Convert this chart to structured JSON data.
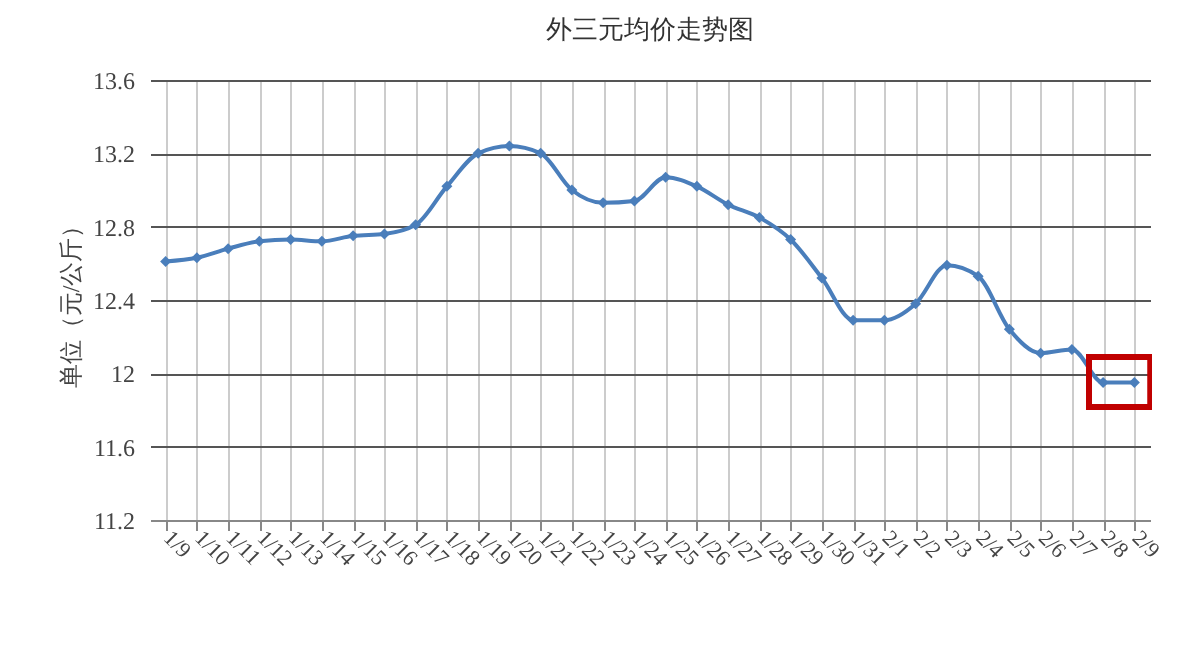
{
  "chart_data": {
    "type": "line",
    "title": "外三元均价走势图",
    "ylabel": "单位（元/公斤）",
    "categories": [
      "1/9",
      "1/10",
      "1/11",
      "1/12",
      "1/13",
      "1/14",
      "1/15",
      "1/16",
      "1/17",
      "1/18",
      "1/19",
      "1/20",
      "1/21",
      "1/22",
      "1/23",
      "1/24",
      "1/25",
      "1/26",
      "1/27",
      "1/28",
      "1/29",
      "1/30",
      "1/31",
      "2/1",
      "2/2",
      "2/3",
      "2/4",
      "2/5",
      "2/6",
      "2/7",
      "2/8",
      "2/9"
    ],
    "series": [
      {
        "color": "#4a7ebb",
        "values": [
          12.61,
          12.63,
          12.68,
          12.72,
          12.73,
          12.72,
          12.75,
          12.76,
          12.81,
          13.02,
          13.2,
          13.24,
          13.2,
          13.0,
          12.93,
          12.94,
          13.07,
          13.02,
          12.92,
          12.85,
          12.73,
          12.52,
          12.29,
          12.29,
          12.38,
          12.59,
          12.53,
          12.24,
          12.11,
          12.13,
          11.95,
          11.95
        ]
      }
    ],
    "ylim": [
      11.2,
      13.6
    ],
    "yticks": [
      11.2,
      11.6,
      12,
      12.4,
      12.8,
      13.2,
      13.6
    ],
    "grid": true,
    "marker": "diamond",
    "legend": false
  }
}
